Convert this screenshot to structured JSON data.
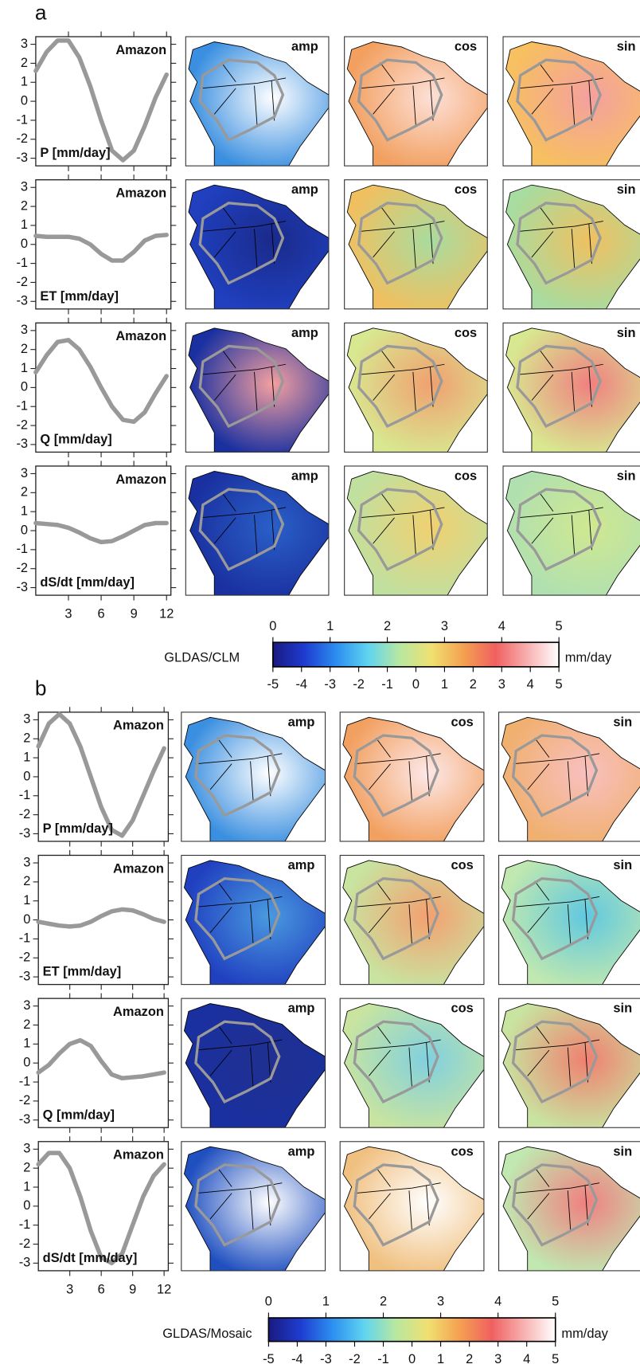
{
  "panel_labels": [
    "a",
    "b"
  ],
  "chart_data": [
    {
      "type": "line",
      "title": "Amazon",
      "ylabel": "P [mm/day]",
      "x": [
        0,
        1,
        2,
        3,
        4,
        5,
        6,
        7,
        8,
        9,
        10,
        11,
        12
      ],
      "values": [
        1.6,
        2.6,
        3.2,
        3.2,
        2.3,
        0.8,
        -1.0,
        -2.6,
        -3.1,
        -2.6,
        -1.3,
        0.2,
        1.4
      ],
      "color": "#999999",
      "xlim": [
        0,
        12.4
      ],
      "ylim": [
        -3.4,
        3.4
      ],
      "xticks": [
        3,
        6,
        9,
        12
      ],
      "yticks": [
        -3,
        -2,
        -1,
        0,
        1,
        2,
        3
      ],
      "map_titles": [
        "amp",
        "cos",
        "sin"
      ]
    },
    {
      "type": "line",
      "title": "Amazon",
      "ylabel": "ET [mm/day]",
      "x": [
        0,
        1,
        2,
        3,
        4,
        5,
        6,
        7,
        8,
        9,
        10,
        11,
        12
      ],
      "values": [
        0.45,
        0.4,
        0.4,
        0.4,
        0.3,
        0,
        -0.5,
        -0.85,
        -0.85,
        -0.4,
        0.2,
        0.45,
        0.5
      ],
      "color": "#999999",
      "xlim": [
        0,
        12.4
      ],
      "ylim": [
        -3.4,
        3.4
      ],
      "xticks": [
        3,
        6,
        9,
        12
      ],
      "yticks": [
        -3,
        -2,
        -1,
        0,
        1,
        2,
        3
      ],
      "map_titles": [
        "amp",
        "cos",
        "sin"
      ]
    },
    {
      "type": "line",
      "title": "Amazon",
      "ylabel": "Q [mm/day]",
      "x": [
        0,
        1,
        2,
        3,
        4,
        5,
        6,
        7,
        8,
        9,
        10,
        11,
        12
      ],
      "values": [
        0.8,
        1.7,
        2.4,
        2.5,
        2.0,
        1.1,
        0,
        -1.0,
        -1.7,
        -1.8,
        -1.3,
        -0.3,
        0.6
      ],
      "color": "#999999",
      "xlim": [
        0,
        12.4
      ],
      "ylim": [
        -3.4,
        3.4
      ],
      "xticks": [
        3,
        6,
        9,
        12
      ],
      "yticks": [
        -3,
        -2,
        -1,
        0,
        1,
        2,
        3
      ],
      "map_titles": [
        "amp",
        "cos",
        "sin"
      ]
    },
    {
      "type": "line",
      "title": "Amazon",
      "ylabel": "dS/dt [mm/day]",
      "x": [
        0,
        1,
        2,
        3,
        4,
        5,
        6,
        7,
        8,
        9,
        10,
        11,
        12
      ],
      "values": [
        0.4,
        0.35,
        0.3,
        0.15,
        -0.1,
        -0.4,
        -0.6,
        -0.55,
        -0.3,
        0,
        0.3,
        0.4,
        0.4
      ],
      "color": "#999999",
      "xlim": [
        0,
        12.4
      ],
      "ylim": [
        -3.4,
        3.4
      ],
      "xticks": [
        3,
        6,
        9,
        12
      ],
      "yticks": [
        -3,
        -2,
        -1,
        0,
        1,
        2,
        3
      ],
      "map_titles": [
        "amp",
        "cos",
        "sin"
      ]
    },
    {
      "type": "line",
      "title": "Amazon",
      "ylabel": "P [mm/day]",
      "x": [
        0,
        1,
        2,
        3,
        4,
        5,
        6,
        7,
        8,
        9,
        10,
        11,
        12
      ],
      "values": [
        1.6,
        2.8,
        3.3,
        2.8,
        1.6,
        0,
        -1.6,
        -2.8,
        -3.1,
        -2.3,
        -1.0,
        0.3,
        1.5
      ],
      "color": "#999999",
      "xlim": [
        0,
        12.4
      ],
      "ylim": [
        -3.4,
        3.4
      ],
      "xticks": [
        3,
        6,
        9,
        12
      ],
      "yticks": [
        -3,
        -2,
        -1,
        0,
        1,
        2,
        3
      ],
      "map_titles": [
        "amp",
        "cos",
        "sin"
      ]
    },
    {
      "type": "line",
      "title": "Amazon",
      "ylabel": "ET [mm/day]",
      "x": [
        0,
        1,
        2,
        3,
        4,
        5,
        6,
        7,
        8,
        9,
        10,
        11,
        12
      ],
      "values": [
        -0.1,
        -0.2,
        -0.3,
        -0.35,
        -0.3,
        -0.1,
        0.2,
        0.45,
        0.55,
        0.5,
        0.3,
        0.05,
        -0.1
      ],
      "color": "#999999",
      "xlim": [
        0,
        12.4
      ],
      "ylim": [
        -3.4,
        3.4
      ],
      "xticks": [
        3,
        6,
        9,
        12
      ],
      "yticks": [
        -3,
        -2,
        -1,
        0,
        1,
        2,
        3
      ],
      "map_titles": [
        "amp",
        "cos",
        "sin"
      ]
    },
    {
      "type": "line",
      "title": "Amazon",
      "ylabel": "Q [mm/day]",
      "x": [
        0,
        1,
        2,
        3,
        4,
        5,
        6,
        7,
        8,
        9,
        10,
        11,
        12
      ],
      "values": [
        -0.5,
        -0.1,
        0.5,
        1.0,
        1.2,
        0.9,
        0.1,
        -0.6,
        -0.8,
        -0.75,
        -0.7,
        -0.6,
        -0.5
      ],
      "color": "#999999",
      "xlim": [
        0,
        12.4
      ],
      "ylim": [
        -3.4,
        3.4
      ],
      "xticks": [
        3,
        6,
        9,
        12
      ],
      "yticks": [
        -3,
        -2,
        -1,
        0,
        1,
        2,
        3
      ],
      "map_titles": [
        "amp",
        "cos",
        "sin"
      ]
    },
    {
      "type": "line",
      "title": "Amazon",
      "ylabel": "dS/dt [mm/day]",
      "x": [
        0,
        1,
        2,
        3,
        4,
        5,
        6,
        7,
        8,
        9,
        10,
        11,
        12
      ],
      "values": [
        2.2,
        2.8,
        2.8,
        2.0,
        0.5,
        -1.3,
        -2.7,
        -3.0,
        -2.5,
        -1.0,
        0.5,
        1.6,
        2.2
      ],
      "color": "#999999",
      "xlim": [
        0,
        12.4
      ],
      "ylim": [
        -3.4,
        3.4
      ],
      "xticks": [
        3,
        6,
        9,
        12
      ],
      "yticks": [
        -3,
        -2,
        -1,
        0,
        1,
        2,
        3
      ],
      "map_titles": [
        "amp",
        "cos",
        "sin"
      ]
    },
    {
      "type": "colorbar",
      "title": "GLDAS/CLM",
      "unit": "mm/day",
      "colors": [
        "#1a1a80",
        "#1e3cd0",
        "#2c8ef0",
        "#5fd4f0",
        "#b8e8a0",
        "#f0e070",
        "#f4a050",
        "#f06060",
        "#f8b0b0",
        "#ffffff"
      ],
      "xlim": [
        0,
        5
      ],
      "xticks": [
        0,
        1,
        2,
        3,
        4,
        5
      ],
      "x2lim": [
        -5,
        5
      ],
      "x2ticks": [
        -5,
        -4,
        -3,
        -2,
        -1,
        0,
        1,
        2,
        3,
        4,
        5
      ]
    },
    {
      "type": "colorbar",
      "title": "GLDAS/Mosaic",
      "unit": "mm/day",
      "colors": [
        "#1a1a80",
        "#1e3cd0",
        "#2c8ef0",
        "#5fd4f0",
        "#b8e8a0",
        "#f0e070",
        "#f4a050",
        "#f06060",
        "#f8b0b0",
        "#ffffff"
      ],
      "xlim": [
        0,
        5
      ],
      "xticks": [
        0,
        1,
        2,
        3,
        4,
        5
      ],
      "x2lim": [
        -5,
        5
      ],
      "x2ticks": [
        -5,
        -4,
        -3,
        -2,
        -1,
        0,
        1,
        2,
        3,
        4,
        5
      ]
    }
  ]
}
